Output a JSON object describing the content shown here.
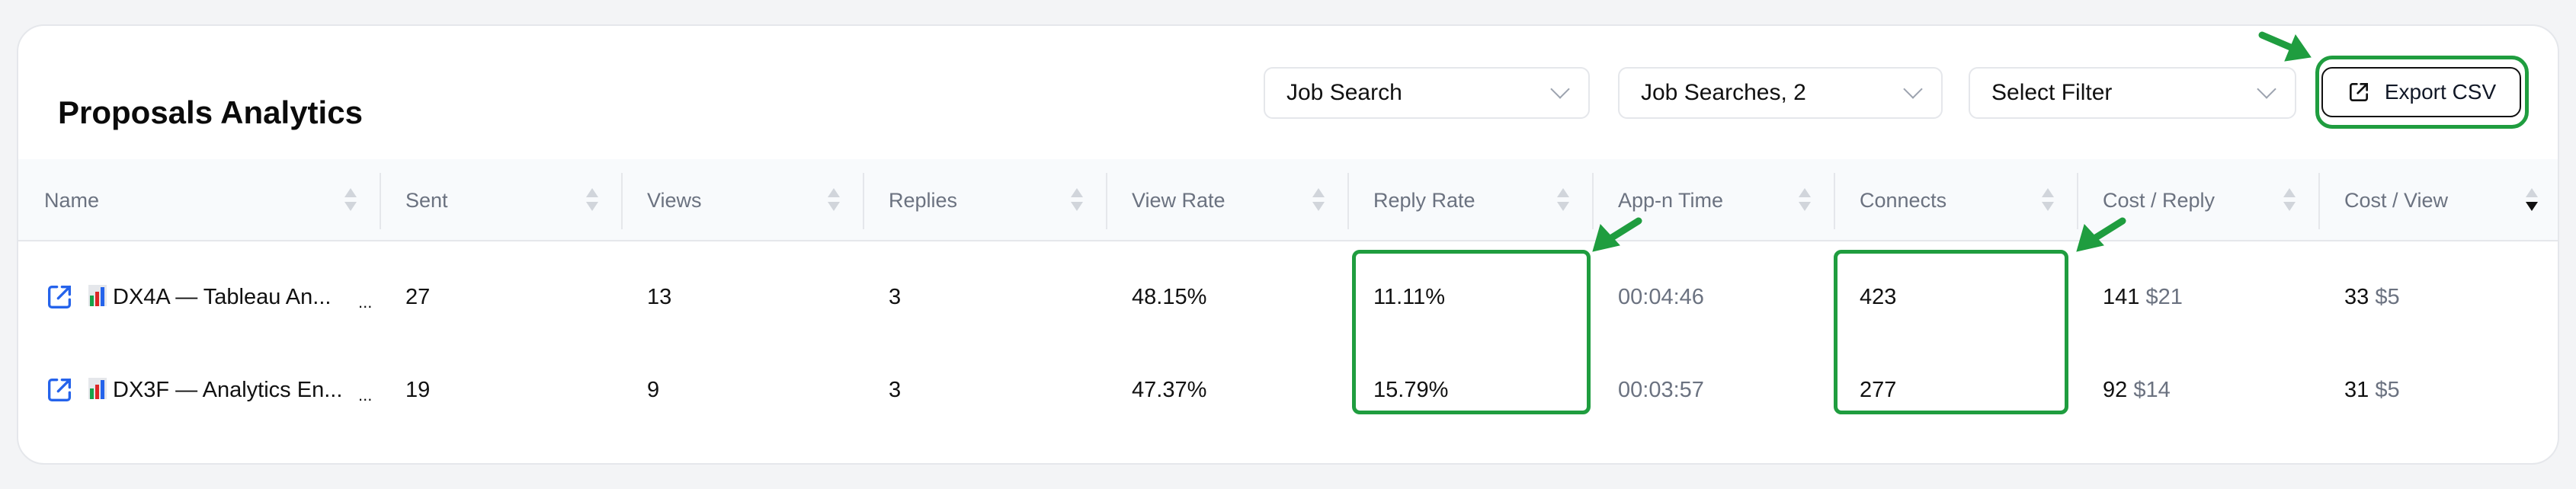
{
  "header": {
    "title": "Proposals Analytics",
    "filters": [
      "Job Search",
      "Job Searches, 2",
      "Select Filter"
    ],
    "export_label": "Export CSV"
  },
  "table": {
    "columns": [
      "Name",
      "Sent",
      "Views",
      "Replies",
      "View Rate",
      "Reply Rate",
      "App-n Time",
      "Connects",
      "Cost / Reply",
      "Cost / View"
    ],
    "sorted_column": "Cost / View",
    "sort_direction": "descending",
    "rows": [
      {
        "name": "DX4A — Tableau An...",
        "more": "...",
        "sent": "27",
        "views": "13",
        "replies": "3",
        "view_rate": "48.15%",
        "reply_rate": "11.11%",
        "time": "00:04:46",
        "connects": "423",
        "cost_reply": "141",
        "cost_reply_usd": "$21",
        "cost_view": "33",
        "cost_view_usd": "$5"
      },
      {
        "name": "DX3F — Analytics En...",
        "more": "...",
        "sent": "19",
        "views": "9",
        "replies": "3",
        "view_rate": "47.37%",
        "reply_rate": "15.79%",
        "time": "00:03:57",
        "connects": "277",
        "cost_reply": "92",
        "cost_reply_usd": "$14",
        "cost_view": "31",
        "cost_view_usd": "$5"
      }
    ]
  },
  "annotation_color": "#1f9d3f"
}
